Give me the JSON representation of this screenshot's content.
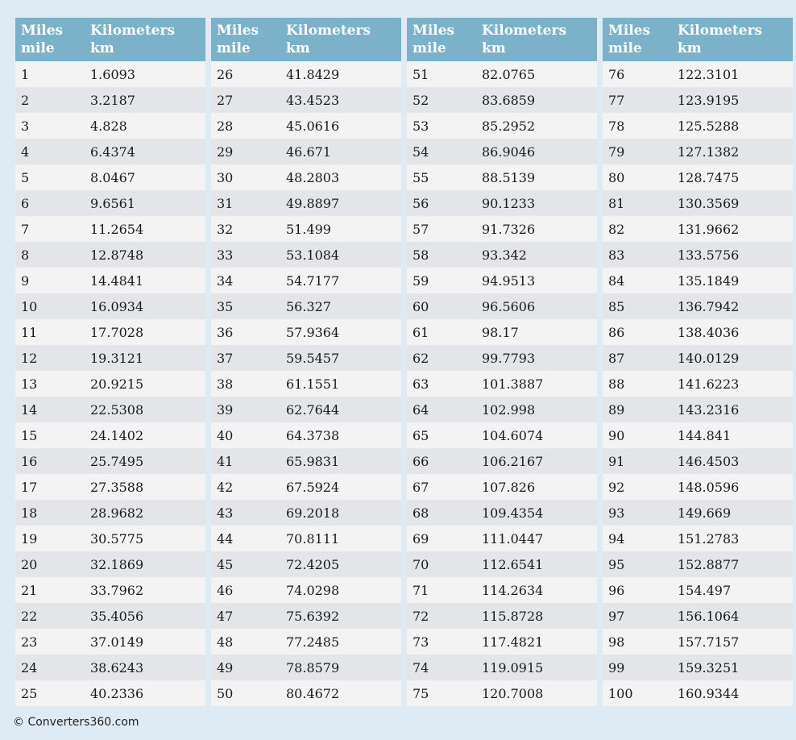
{
  "page": {
    "footer_credit": "© Converters360.com"
  },
  "colors": {
    "header_bg": "#7cb2c9",
    "header_text": "#ffffff",
    "row_light": "#f3f3f4",
    "row_dark": "#e4e5e9",
    "cell_text": "#1a1a1a",
    "page_bg": "#deebf4"
  },
  "header": {
    "miles_label": "Miles",
    "miles_unit": "mile",
    "km_label": "Kilometers",
    "km_unit": "km"
  },
  "tables": [
    {
      "rows": [
        [
          "1",
          "1.6093"
        ],
        [
          "2",
          "3.2187"
        ],
        [
          "3",
          "4.828"
        ],
        [
          "4",
          "6.4374"
        ],
        [
          "5",
          "8.0467"
        ],
        [
          "6",
          "9.6561"
        ],
        [
          "7",
          "11.2654"
        ],
        [
          "8",
          "12.8748"
        ],
        [
          "9",
          "14.4841"
        ],
        [
          "10",
          "16.0934"
        ],
        [
          "11",
          "17.7028"
        ],
        [
          "12",
          "19.3121"
        ],
        [
          "13",
          "20.9215"
        ],
        [
          "14",
          "22.5308"
        ],
        [
          "15",
          "24.1402"
        ],
        [
          "16",
          "25.7495"
        ],
        [
          "17",
          "27.3588"
        ],
        [
          "18",
          "28.9682"
        ],
        [
          "19",
          "30.5775"
        ],
        [
          "20",
          "32.1869"
        ],
        [
          "21",
          "33.7962"
        ],
        [
          "22",
          "35.4056"
        ],
        [
          "23",
          "37.0149"
        ],
        [
          "24",
          "38.6243"
        ],
        [
          "25",
          "40.2336"
        ]
      ]
    },
    {
      "rows": [
        [
          "26",
          "41.8429"
        ],
        [
          "27",
          "43.4523"
        ],
        [
          "28",
          "45.0616"
        ],
        [
          "29",
          "46.671"
        ],
        [
          "30",
          "48.2803"
        ],
        [
          "31",
          "49.8897"
        ],
        [
          "32",
          "51.499"
        ],
        [
          "33",
          "53.1084"
        ],
        [
          "34",
          "54.7177"
        ],
        [
          "35",
          "56.327"
        ],
        [
          "36",
          "57.9364"
        ],
        [
          "37",
          "59.5457"
        ],
        [
          "38",
          "61.1551"
        ],
        [
          "39",
          "62.7644"
        ],
        [
          "40",
          "64.3738"
        ],
        [
          "41",
          "65.9831"
        ],
        [
          "42",
          "67.5924"
        ],
        [
          "43",
          "69.2018"
        ],
        [
          "44",
          "70.8111"
        ],
        [
          "45",
          "72.4205"
        ],
        [
          "46",
          "74.0298"
        ],
        [
          "47",
          "75.6392"
        ],
        [
          "48",
          "77.2485"
        ],
        [
          "49",
          "78.8579"
        ],
        [
          "50",
          "80.4672"
        ]
      ]
    },
    {
      "rows": [
        [
          "51",
          "82.0765"
        ],
        [
          "52",
          "83.6859"
        ],
        [
          "53",
          "85.2952"
        ],
        [
          "54",
          "86.9046"
        ],
        [
          "55",
          "88.5139"
        ],
        [
          "56",
          "90.1233"
        ],
        [
          "57",
          "91.7326"
        ],
        [
          "58",
          "93.342"
        ],
        [
          "59",
          "94.9513"
        ],
        [
          "60",
          "96.5606"
        ],
        [
          "61",
          "98.17"
        ],
        [
          "62",
          "99.7793"
        ],
        [
          "63",
          "101.3887"
        ],
        [
          "64",
          "102.998"
        ],
        [
          "65",
          "104.6074"
        ],
        [
          "66",
          "106.2167"
        ],
        [
          "67",
          "107.826"
        ],
        [
          "68",
          "109.4354"
        ],
        [
          "69",
          "111.0447"
        ],
        [
          "70",
          "112.6541"
        ],
        [
          "71",
          "114.2634"
        ],
        [
          "72",
          "115.8728"
        ],
        [
          "73",
          "117.4821"
        ],
        [
          "74",
          "119.0915"
        ],
        [
          "75",
          "120.7008"
        ]
      ]
    },
    {
      "rows": [
        [
          "76",
          "122.3101"
        ],
        [
          "77",
          "123.9195"
        ],
        [
          "78",
          "125.5288"
        ],
        [
          "79",
          "127.1382"
        ],
        [
          "80",
          "128.7475"
        ],
        [
          "81",
          "130.3569"
        ],
        [
          "82",
          "131.9662"
        ],
        [
          "83",
          "133.5756"
        ],
        [
          "84",
          "135.1849"
        ],
        [
          "85",
          "136.7942"
        ],
        [
          "86",
          "138.4036"
        ],
        [
          "87",
          "140.0129"
        ],
        [
          "88",
          "141.6223"
        ],
        [
          "89",
          "143.2316"
        ],
        [
          "90",
          "144.841"
        ],
        [
          "91",
          "146.4503"
        ],
        [
          "92",
          "148.0596"
        ],
        [
          "93",
          "149.669"
        ],
        [
          "94",
          "151.2783"
        ],
        [
          "95",
          "152.8877"
        ],
        [
          "96",
          "154.497"
        ],
        [
          "97",
          "156.1064"
        ],
        [
          "98",
          "157.7157"
        ],
        [
          "99",
          "159.3251"
        ],
        [
          "100",
          "160.9344"
        ]
      ]
    }
  ]
}
